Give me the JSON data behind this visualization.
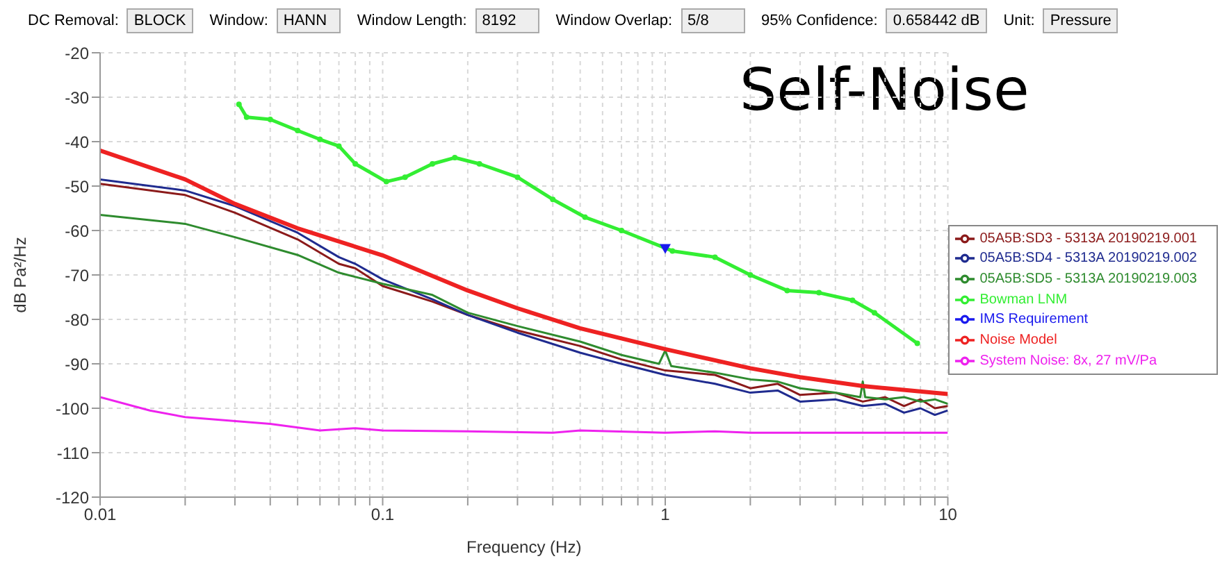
{
  "chart_data": {
    "type": "line",
    "title": "Self-Noise",
    "xlabel": "Frequency (Hz)",
    "ylabel": "dB Pa²/Hz",
    "annotations": [
      "DC Removal:",
      "BLOCK",
      "Window:",
      "HANN",
      "Window Length:",
      "8192",
      "Window Overlap:",
      "5/8",
      "95% Confidence:",
      "0.658442 dB",
      "Unit:",
      "Pressure"
    ],
    "log": "x",
    "grid": true,
    "legend": "right",
    "xlim": [
      0.01,
      10
    ],
    "xticks": [
      0.01,
      {
        "value": 0.02,
        "label": null
      },
      {
        "value": 0.03,
        "label": null
      },
      {
        "value": 0.04,
        "label": null
      },
      {
        "value": 0.05,
        "label": null
      },
      {
        "value": 0.06,
        "label": null
      },
      {
        "value": 0.07,
        "label": null
      },
      {
        "value": 0.08,
        "label": null
      },
      {
        "value": 0.09,
        "label": null
      },
      0.1,
      {
        "value": 0.2,
        "label": null
      },
      {
        "value": 0.3,
        "label": null
      },
      {
        "value": 0.4,
        "label": null
      },
      {
        "value": 0.5,
        "label": null
      },
      {
        "value": 0.6,
        "label": null
      },
      {
        "value": 0.7,
        "label": null
      },
      {
        "value": 0.8,
        "label": null
      },
      {
        "value": 0.9,
        "label": null
      },
      1,
      {
        "value": 2,
        "label": null
      },
      {
        "value": 3,
        "label": null
      },
      {
        "value": 4,
        "label": null
      },
      {
        "value": 5,
        "label": null
      },
      {
        "value": 6,
        "label": null
      },
      {
        "value": 7,
        "label": null
      },
      {
        "value": 8,
        "label": null
      },
      {
        "value": 9,
        "label": null
      },
      10
    ],
    "ylim": [
      -120,
      -20
    ],
    "yticks": [
      -120,
      -110,
      -100,
      -90,
      -80,
      -70,
      -60,
      -50,
      -40,
      -30,
      -20
    ],
    "series": [
      {
        "name": "05A5B:SD3 - 5313A 20190219.001",
        "color": "#8b1a1a",
        "marker": "none",
        "x": [
          0.01,
          0.02,
          0.03,
          0.05,
          0.07,
          0.08,
          0.1,
          0.15,
          0.2,
          0.3,
          0.5,
          0.7,
          1,
          1.5,
          2,
          2.5,
          3,
          4,
          5,
          6,
          7,
          8,
          9,
          10
        ],
        "values": [
          -49.5,
          -52,
          -56,
          -62,
          -67.5,
          -68.5,
          -72.5,
          -76,
          -79,
          -82.5,
          -86,
          -89,
          -91.5,
          -92.5,
          -95.5,
          -94.5,
          -97,
          -96.5,
          -98.5,
          -97.5,
          -99.5,
          -98,
          -100,
          -99.5
        ]
      },
      {
        "name": "05A5B:SD4 - 5313A 20190219.002",
        "color": "#1f2b8f",
        "marker": "none",
        "x": [
          0.01,
          0.02,
          0.03,
          0.05,
          0.07,
          0.08,
          0.1,
          0.15,
          0.2,
          0.3,
          0.5,
          0.7,
          1,
          1.5,
          2,
          2.5,
          3,
          4,
          5,
          6,
          7,
          8,
          9,
          10
        ],
        "values": [
          -48.5,
          -51,
          -54.5,
          -60.5,
          -66,
          -67.5,
          -71,
          -75.5,
          -79,
          -83,
          -87.5,
          -90,
          -92.5,
          -94.5,
          -96.5,
          -96,
          -98.5,
          -98,
          -99.5,
          -99,
          -101,
          -100,
          -101.5,
          -100.5
        ]
      },
      {
        "name": "05A5B:SD5 - 5313A 20190219.003",
        "color": "#2e8b2e",
        "marker": "none",
        "x": [
          0.01,
          0.02,
          0.03,
          0.05,
          0.07,
          0.1,
          0.15,
          0.2,
          0.3,
          0.5,
          0.7,
          0.95,
          1,
          1.05,
          1.5,
          2,
          2.5,
          3,
          4,
          4.9,
          5,
          5.1,
          6,
          7,
          8,
          9,
          10
        ],
        "values": [
          -56.5,
          -58.5,
          -61.5,
          -65.5,
          -69.5,
          -72,
          -74.5,
          -78.5,
          -81.5,
          -85,
          -88,
          -90,
          -87,
          -90.5,
          -92,
          -93.5,
          -94,
          -95.5,
          -96.5,
          -97.5,
          -94,
          -97.5,
          -98,
          -97.5,
          -98.5,
          -98,
          -99
        ]
      },
      {
        "name": "Bowman LNM",
        "color": "#33ee33",
        "marker": "circle",
        "x": [
          0.031,
          0.033,
          0.04,
          0.05,
          0.06,
          0.07,
          0.08,
          0.103,
          0.12,
          0.15,
          0.18,
          0.22,
          0.3,
          0.4,
          0.52,
          0.7,
          1.06,
          1.5,
          2,
          2.7,
          3.5,
          4.6,
          5.5,
          7.8
        ],
        "values": [
          -31.6,
          -34.5,
          -35,
          -37.5,
          -39.5,
          -41,
          -45,
          -49,
          -48,
          -45,
          -43.6,
          -45,
          -48,
          -53,
          -57,
          -60,
          -64.6,
          -66,
          -70,
          -73.5,
          -74,
          -75.7,
          -78.5,
          -85.4
        ]
      },
      {
        "name": "Noise Model",
        "color": "#ee2222",
        "marker": "none",
        "x": [
          0.01,
          0.02,
          0.03,
          0.05,
          0.1,
          0.2,
          0.3,
          0.5,
          1,
          2,
          3,
          5,
          10
        ],
        "values": [
          -42,
          -48.5,
          -54,
          -59.5,
          -65.6,
          -73.5,
          -77.5,
          -82,
          -86.7,
          -91,
          -93,
          -95,
          -96.8
        ]
      },
      {
        "name": "IMS Requirement",
        "color": "#1a1aee",
        "marker": "triangle",
        "x": [
          1
        ],
        "values": [
          -64
        ]
      },
      {
        "name": "System Noise: 8x, 27 mV/Pa",
        "color": "#ee22ee",
        "marker": "none",
        "x": [
          0.01,
          0.015,
          0.02,
          0.04,
          0.06,
          0.08,
          0.1,
          0.2,
          0.4,
          0.5,
          1,
          1.5,
          2,
          10
        ],
        "values": [
          -97.5,
          -100.5,
          -102,
          -103.5,
          -105,
          -104.5,
          -105,
          -105.2,
          -105.5,
          -105,
          -105.5,
          -105.2,
          -105.5,
          -105.5
        ]
      }
    ]
  }
}
